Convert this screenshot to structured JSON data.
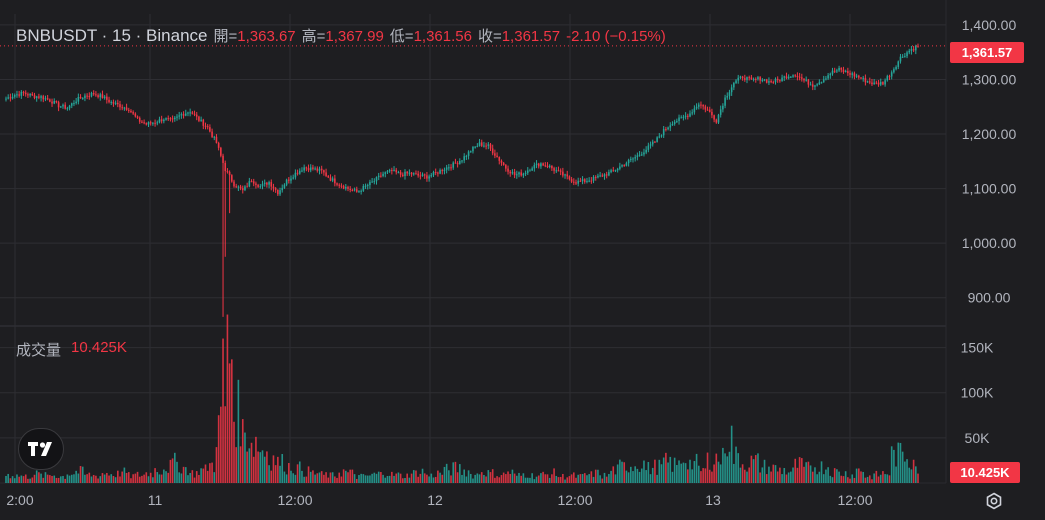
{
  "legend": {
    "symbol": "BNBUSDT · 15 · Binance",
    "open_label": "開=",
    "open": "1,363.67",
    "high_label": "高=",
    "high": "1,367.99",
    "low_label": "低=",
    "low": "1,361.56",
    "close_label": "收=",
    "close": "1,361.57",
    "change": "-2.10 (−0.15%)"
  },
  "volume_legend": {
    "label": "成交量",
    "value": "10.425K"
  },
  "price_tag": "1,361.57",
  "volume_tag": "10.425K",
  "icons": {
    "logo": "tradingview-logo-icon",
    "settings": "gear-icon"
  },
  "colors": {
    "background": "#1e1e21",
    "up": "#26a69a",
    "down": "#f23645",
    "grid": "#2e2e33"
  },
  "chart_data": [
    {
      "type": "candlestick",
      "title": "BNBUSDT · 15 · Binance",
      "ylim": [
        850,
        1420
      ],
      "y_ticks": [
        "1,400.00",
        "1,300.00",
        "1,200.00",
        "1,100.00",
        "1,000.00",
        "900.00"
      ],
      "x_ticks": [
        "2:00",
        "11",
        "12:00",
        "12",
        "12:00",
        "13",
        "12:00"
      ],
      "last_price": 1361.57,
      "close_series": [
        1265,
        1272,
        1275,
        1270,
        1268,
        1262,
        1252,
        1248,
        1262,
        1270,
        1274,
        1268,
        1258,
        1252,
        1246,
        1226,
        1218,
        1222,
        1228,
        1224,
        1236,
        1242,
        1226,
        1212,
        1184,
        1135,
        1108,
        1096,
        1116,
        1104,
        1112,
        1093,
        1114,
        1128,
        1139,
        1136,
        1132,
        1118,
        1108,
        1100,
        1094,
        1104,
        1114,
        1127,
        1132,
        1126,
        1128,
        1124,
        1122,
        1128,
        1137,
        1144,
        1154,
        1170,
        1182,
        1178,
        1158,
        1138,
        1125,
        1128,
        1140,
        1146,
        1140,
        1130,
        1120,
        1112,
        1114,
        1118,
        1124,
        1130,
        1140,
        1150,
        1160,
        1172,
        1186,
        1206,
        1222,
        1228,
        1238,
        1256,
        1244,
        1225,
        1266,
        1294,
        1305,
        1298,
        1302,
        1296,
        1298,
        1306,
        1310,
        1298,
        1290,
        1298,
        1312,
        1318,
        1312,
        1306,
        1298,
        1292,
        1294,
        1314,
        1340,
        1353,
        1361.57
      ],
      "volume": {
        "ylim": [
          0,
          175000
        ],
        "y_ticks": [
          "150K",
          "100K",
          "50K"
        ],
        "last": 10425,
        "series": [
          10000,
          9000,
          8000,
          11000,
          9000,
          10000,
          8000,
          12000,
          14000,
          10000,
          9000,
          12000,
          11000,
          13000,
          9000,
          10000,
          12000,
          16000,
          20000,
          25000,
          18000,
          12000,
          16000,
          22000,
          70000,
          160000,
          85000,
          60000,
          50000,
          40000,
          30000,
          25000,
          20000,
          18000,
          14000,
          12000,
          10000,
          9000,
          14000,
          12000,
          8000,
          9000,
          11000,
          13000,
          10000,
          9000,
          12000,
          14000,
          9000,
          12000,
          16000,
          18000,
          15000,
          10000,
          14000,
          12000,
          10000,
          13000,
          9000,
          11000,
          9000,
          10000,
          12000,
          8000,
          9000,
          8000,
          10000,
          12000,
          9000,
          16000,
          20000,
          22000,
          24000,
          18000,
          20000,
          25000,
          22000,
          30000,
          24000,
          16000,
          28000,
          30000,
          55000,
          32000,
          24000,
          26000,
          20000,
          18000,
          16000,
          14000,
          22000,
          18000,
          20000,
          20000,
          14000,
          12000,
          10000,
          16000,
          8000,
          10000,
          12000,
          34000,
          36000,
          30000,
          10425
        ]
      }
    }
  ]
}
